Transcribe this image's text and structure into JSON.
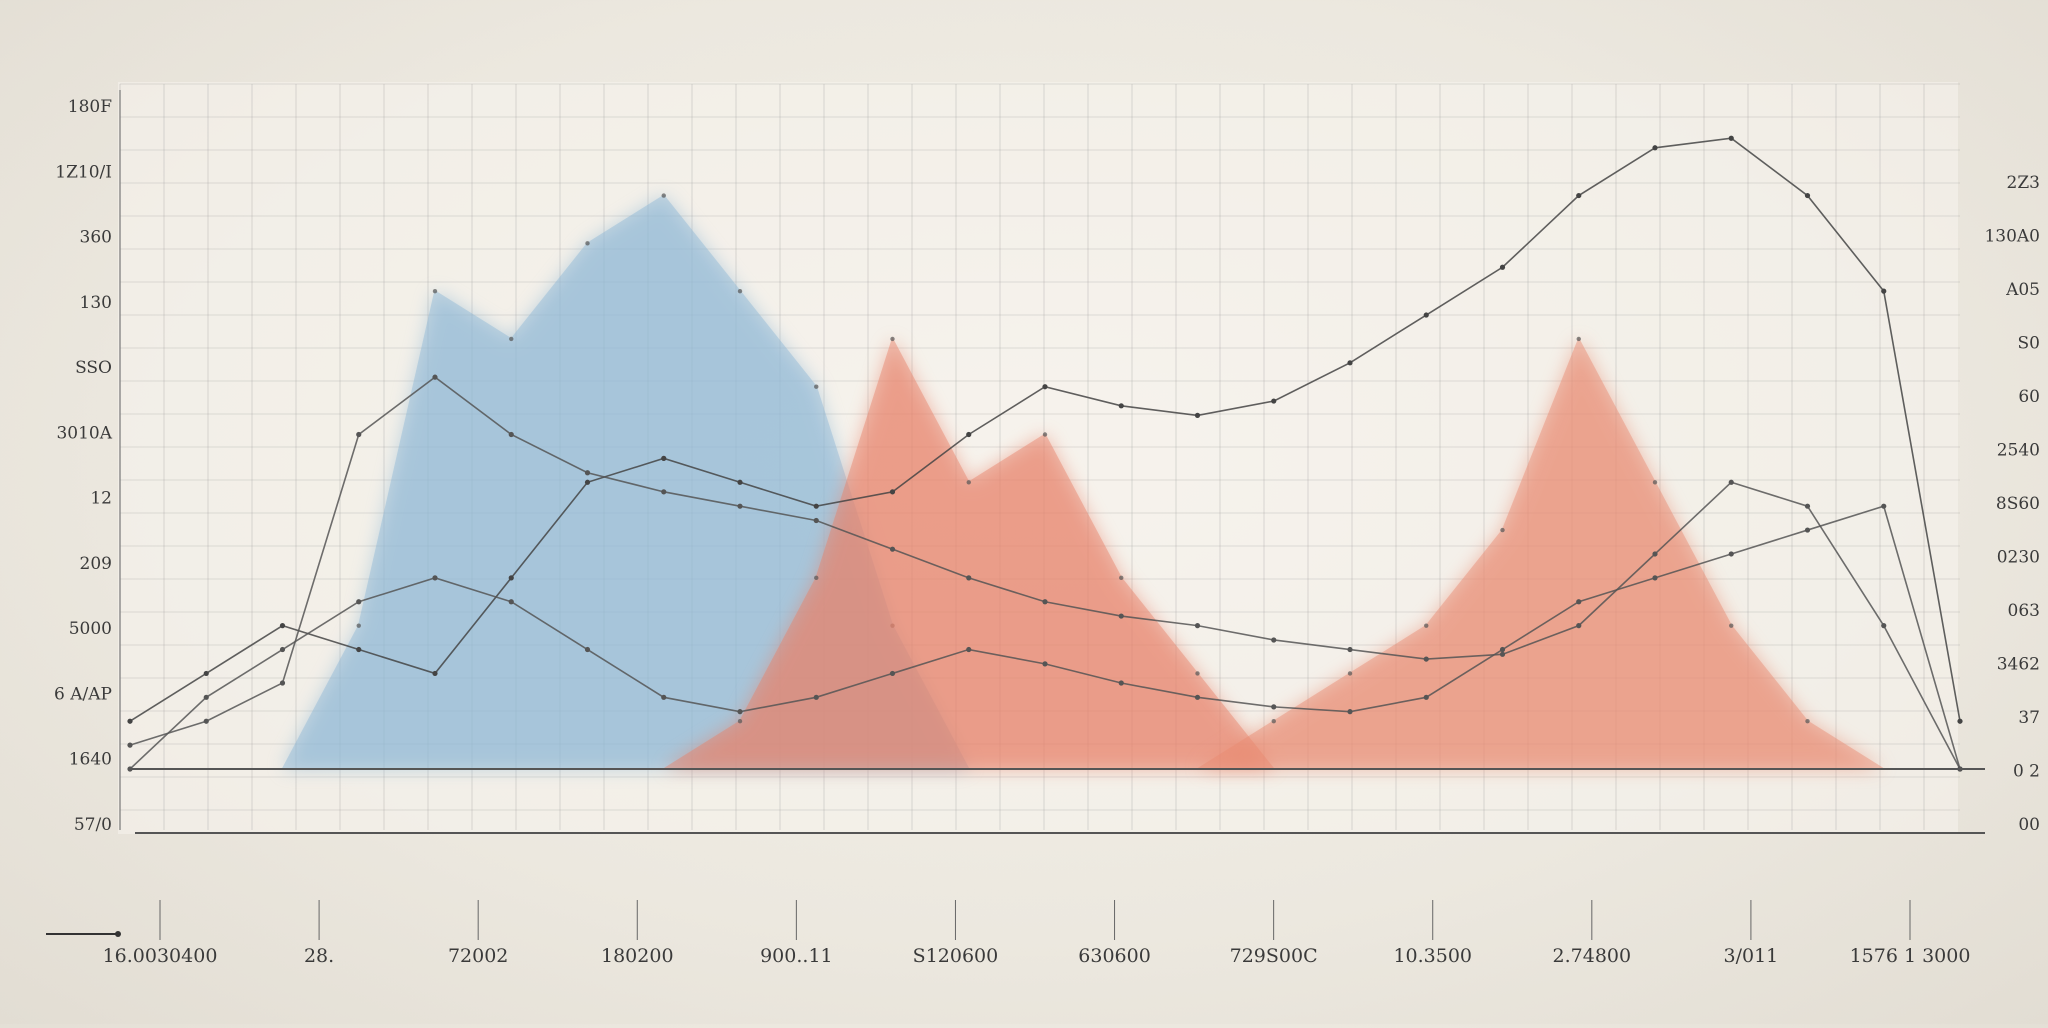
{
  "chart_data": {
    "type": "area",
    "title": "",
    "xlabel": "",
    "ylabel": "",
    "grid": true,
    "legend": "none",
    "y_left_ticks": [
      "180F",
      "1Z10/I",
      "360",
      "130",
      "SSO",
      "3010A",
      "12",
      "209",
      "5000",
      "6 A/AP",
      "1640",
      "57/0"
    ],
    "y_right_ticks": [
      "2Z3",
      "130A0",
      "A05",
      "S0",
      "60",
      "2540",
      "8S60",
      "0230",
      "063",
      "3462",
      "37",
      "0 2",
      "00"
    ],
    "x_ticks": [
      "16.0030400",
      "28.",
      "72002",
      "180200",
      "900..11",
      "S120600",
      "630600",
      "729S00C",
      "10.3500",
      "2.74800",
      "3/011",
      "1576 1 3000"
    ],
    "x": [
      0,
      1,
      2,
      3,
      4,
      5,
      6,
      7,
      8,
      9,
      10,
      11,
      12,
      13,
      14,
      15,
      16,
      17,
      18,
      19,
      20,
      21,
      22,
      23,
      24
    ],
    "series": [
      {
        "color": "#8fb8d6",
        "values": [
          0,
          0,
          0,
          3,
          10,
          9,
          11,
          12,
          10,
          8,
          3,
          0,
          0,
          0,
          0,
          0,
          0,
          0,
          0,
          0,
          0,
          0,
          0,
          0,
          0
        ]
      },
      {
        "color": "#e8826a",
        "values": [
          0,
          0,
          0,
          0,
          0,
          0,
          0,
          0,
          1,
          4,
          9,
          6,
          7,
          4,
          2,
          0,
          0,
          0,
          0,
          0,
          0,
          0,
          0,
          0,
          0
        ]
      },
      {
        "color": "#e98b72",
        "values": [
          0,
          0,
          0,
          0,
          0,
          0,
          0,
          0,
          0,
          0,
          0,
          0,
          0,
          0,
          0,
          1,
          2,
          3,
          5,
          9,
          6,
          3,
          1,
          0,
          0
        ]
      }
    ],
    "line_series": [
      {
        "color": "#444444",
        "values": [
          1,
          2,
          3,
          2.5,
          2,
          4,
          6,
          6.5,
          6,
          5.5,
          5.8,
          7,
          8,
          7.6,
          7.4,
          7.7,
          8.5,
          9.5,
          10.5,
          12,
          13,
          13.2,
          12,
          10,
          1
        ]
      },
      {
        "color": "#555555",
        "values": [
          0,
          1.5,
          2.5,
          3.5,
          4,
          3.5,
          2.5,
          1.5,
          1.2,
          1.5,
          2,
          2.5,
          2.2,
          1.8,
          1.5,
          1.3,
          1.2,
          1.5,
          2.5,
          3.5,
          4,
          4.5,
          5,
          5.5,
          0
        ]
      },
      {
        "color": "#555555",
        "values": [
          0.5,
          1,
          1.8,
          7,
          8.2,
          7,
          6.2,
          5.8,
          5.5,
          5.2,
          4.6,
          4,
          3.5,
          3.2,
          3,
          2.7,
          2.5,
          2.3,
          2.4,
          3,
          4.5,
          6,
          5.5,
          3,
          0
        ]
      }
    ],
    "ylim": [
      0,
      14
    ]
  },
  "markers": {
    "axis_arrow": "arrow-icon"
  }
}
